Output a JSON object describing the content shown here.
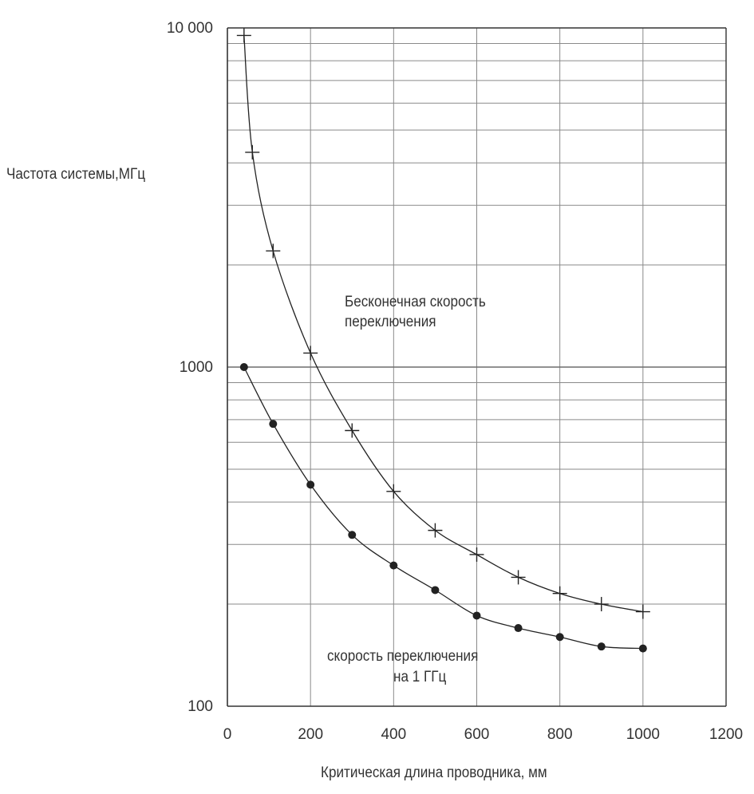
{
  "chart_data": {
    "type": "line",
    "title": "",
    "xlabel": "Критическая длина проводника, мм",
    "ylabel": "Частота системы,МГц",
    "xlim": [
      0,
      1200
    ],
    "ylim": [
      100,
      10000
    ],
    "yscale": "log",
    "grid": true,
    "x_ticks": [
      0,
      200,
      400,
      600,
      800,
      1000,
      1200
    ],
    "x_tick_labels": [
      "0",
      "200",
      "400",
      "600",
      "800",
      "1000",
      "1200"
    ],
    "y_ticks": [
      100,
      1000,
      10000
    ],
    "y_tick_labels": [
      "100",
      "1000",
      "10 000"
    ],
    "series": [
      {
        "name": "Бесконечная скорость переключения",
        "marker": "plus",
        "color": "#222222",
        "x": [
          40,
          60,
          110,
          200,
          300,
          400,
          500,
          600,
          700,
          800,
          900,
          1000
        ],
        "y": [
          9500,
          4300,
          2200,
          1100,
          650,
          430,
          330,
          280,
          240,
          215,
          200,
          190
        ]
      },
      {
        "name": "скорость переключения на 1 ГГц",
        "marker": "dot",
        "color": "#222222",
        "x": [
          40,
          110,
          200,
          300,
          400,
          500,
          600,
          700,
          800,
          900,
          1000
        ],
        "y": [
          1000,
          680,
          450,
          320,
          260,
          220,
          185,
          170,
          160,
          150,
          148
        ]
      }
    ],
    "annotations": [
      {
        "lines": [
          "Бесконечная скорость",
          "переключения"
        ]
      },
      {
        "lines": [
          "скорость переключения",
          "на 1 ГГц"
        ]
      }
    ]
  }
}
